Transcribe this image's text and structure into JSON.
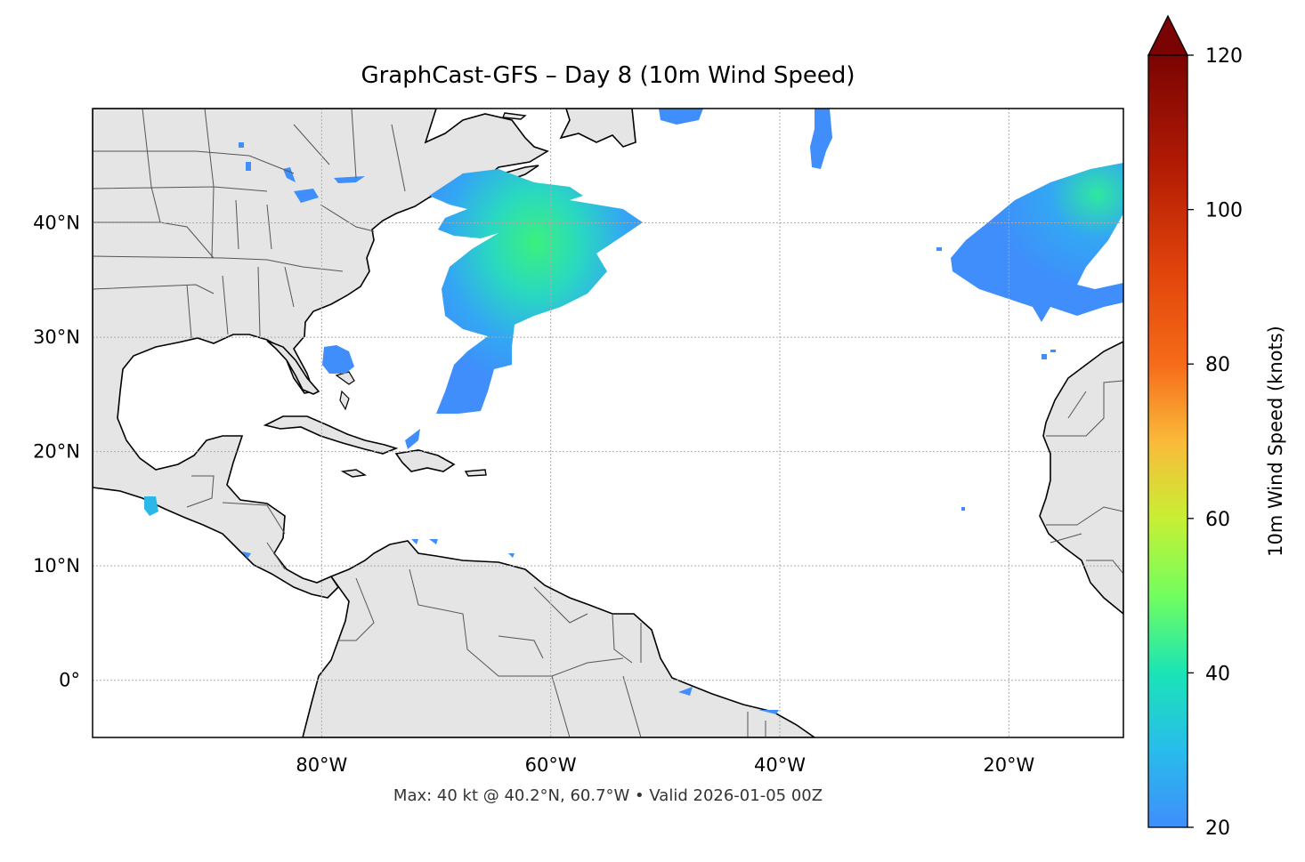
{
  "title": "GraphCast-GFS – Day 8 (10m Wind Speed)",
  "footer": "Max: 40 kt @ 40.2°N, 60.7°W • Valid 2026-01-05 00Z",
  "map": {
    "lon_range": [
      -100,
      -10
    ],
    "lat_range": [
      -5,
      50
    ],
    "lat_ticks": [
      {
        "value": 40,
        "label": "40°N"
      },
      {
        "value": 30,
        "label": "30°N"
      },
      {
        "value": 20,
        "label": "20°N"
      },
      {
        "value": 10,
        "label": "10°N"
      },
      {
        "value": 0,
        "label": "0°"
      }
    ],
    "lon_ticks": [
      {
        "value": -80,
        "label": "80°W"
      },
      {
        "value": -60,
        "label": "60°W"
      },
      {
        "value": -40,
        "label": "40°W"
      },
      {
        "value": -20,
        "label": "20°W"
      }
    ],
    "grid": true,
    "land_color": "#e5e5e5",
    "ocean_color": "#ffffff"
  },
  "colorbar": {
    "label": "10m Wind Speed (knots)",
    "min": 20,
    "max": 120,
    "extend": "max",
    "colormap": "turbo",
    "ticks": [
      {
        "value": 20,
        "label": "20"
      },
      {
        "value": 40,
        "label": "40"
      },
      {
        "value": 60,
        "label": "60"
      },
      {
        "value": 80,
        "label": "80"
      },
      {
        "value": 100,
        "label": "100"
      },
      {
        "value": 120,
        "label": "120"
      }
    ]
  }
}
